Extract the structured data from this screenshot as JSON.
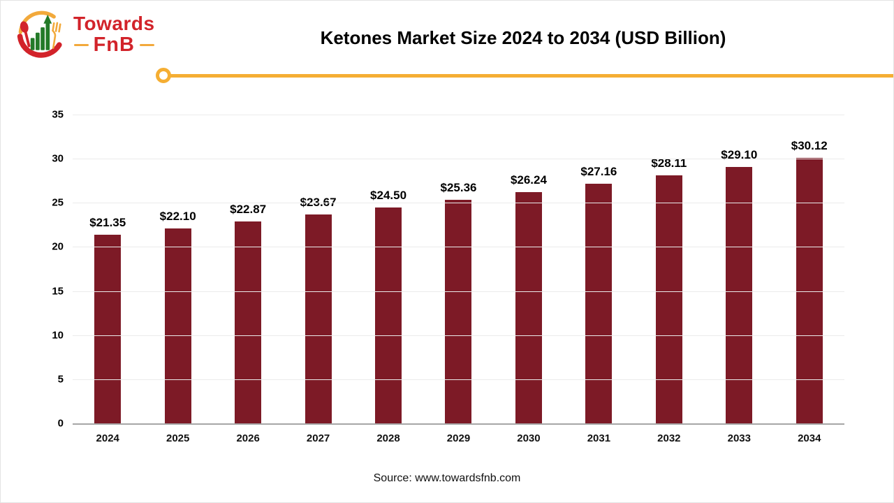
{
  "header": {
    "title": "Ketones Market Size 2024 to 2034 (USD Billion)",
    "logo": {
      "brand_top": "Towards",
      "brand_bottom": "FnB"
    }
  },
  "footer": {
    "source": "Source: www.towardsfnb.com"
  },
  "colors": {
    "bar": "#7D1A26",
    "accent_line": "#F5AE33",
    "logo_red": "#D2232A",
    "logo_green": "#237A28",
    "logo_yellow": "#F2A93B",
    "gridline": "#EBEBEB",
    "axis_line": "#A6A6A6",
    "text": "#000000"
  },
  "chart_data": {
    "type": "bar",
    "title": "Ketones Market Size 2024 to 2034 (USD Billion)",
    "categories": [
      "2024",
      "2025",
      "2026",
      "2027",
      "2028",
      "2029",
      "2030",
      "2031",
      "2032",
      "2033",
      "2034"
    ],
    "values": [
      21.35,
      22.1,
      22.87,
      23.67,
      24.5,
      25.36,
      26.24,
      27.16,
      28.11,
      29.1,
      30.12
    ],
    "value_labels": [
      "$21.35",
      "$22.10",
      "$22.87",
      "$23.67",
      "$24.50",
      "$25.36",
      "$26.24",
      "$27.16",
      "$28.11",
      "$29.10",
      "$30.12"
    ],
    "xlabel": "",
    "ylabel": "",
    "ylim": [
      0,
      35
    ],
    "ytick_step": 5,
    "yticks": [
      0,
      5,
      10,
      15,
      20,
      25,
      30,
      35
    ],
    "grid": "horizontal",
    "legend": "none",
    "bar_color": "#7D1A26"
  }
}
